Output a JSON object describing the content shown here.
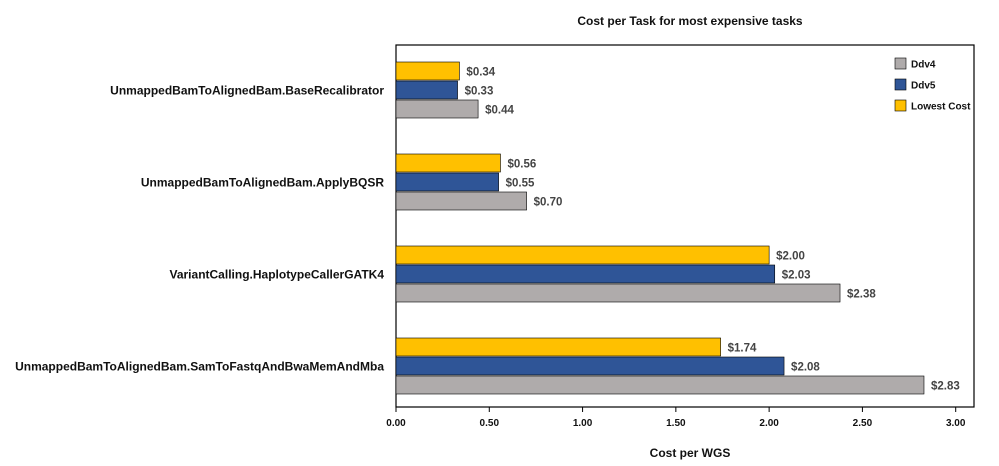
{
  "chart_data": {
    "type": "bar",
    "orientation": "horizontal",
    "title": "Cost per Task for most expensive tasks",
    "xlabel": "Cost per WGS",
    "ylabel": "",
    "xlim": [
      0,
      3.0
    ],
    "xticks": [
      0,
      0.5,
      1.0,
      1.5,
      2.0,
      2.5,
      3.0
    ],
    "xtick_labels": [
      "0.00",
      "0.50",
      "1.00",
      "1.50",
      "2.00",
      "2.50",
      "3.00"
    ],
    "grid": false,
    "legend_position": "top-right",
    "categories": [
      "UnmappedBamToAlignedBam.BaseRecalibrator",
      "UnmappedBamToAlignedBam.ApplyBQSR",
      "VariantCalling.HaplotypeCallerGATK4",
      "UnmappedBamToAlignedBam.SamToFastqAndBwaMemAndMba"
    ],
    "series": [
      {
        "name": "Lowest Cost",
        "color": "#FFC000",
        "values": [
          0.34,
          0.56,
          2.0,
          1.74
        ],
        "labels": [
          "$0.34",
          "$0.56",
          "$2.00",
          "$1.74"
        ]
      },
      {
        "name": "Ddv5",
        "color": "#2F5597",
        "values": [
          0.33,
          0.55,
          2.03,
          2.08
        ],
        "labels": [
          "$0.33",
          "$0.55",
          "$2.03",
          "$2.08"
        ]
      },
      {
        "name": "Ddv4",
        "color": "#AFABAB",
        "values": [
          0.44,
          0.7,
          2.38,
          2.83
        ],
        "labels": [
          "$0.44",
          "$0.70",
          "$2.38",
          "$2.83"
        ]
      }
    ],
    "legend_order": [
      "Ddv4",
      "Ddv5",
      "Lowest Cost"
    ]
  }
}
